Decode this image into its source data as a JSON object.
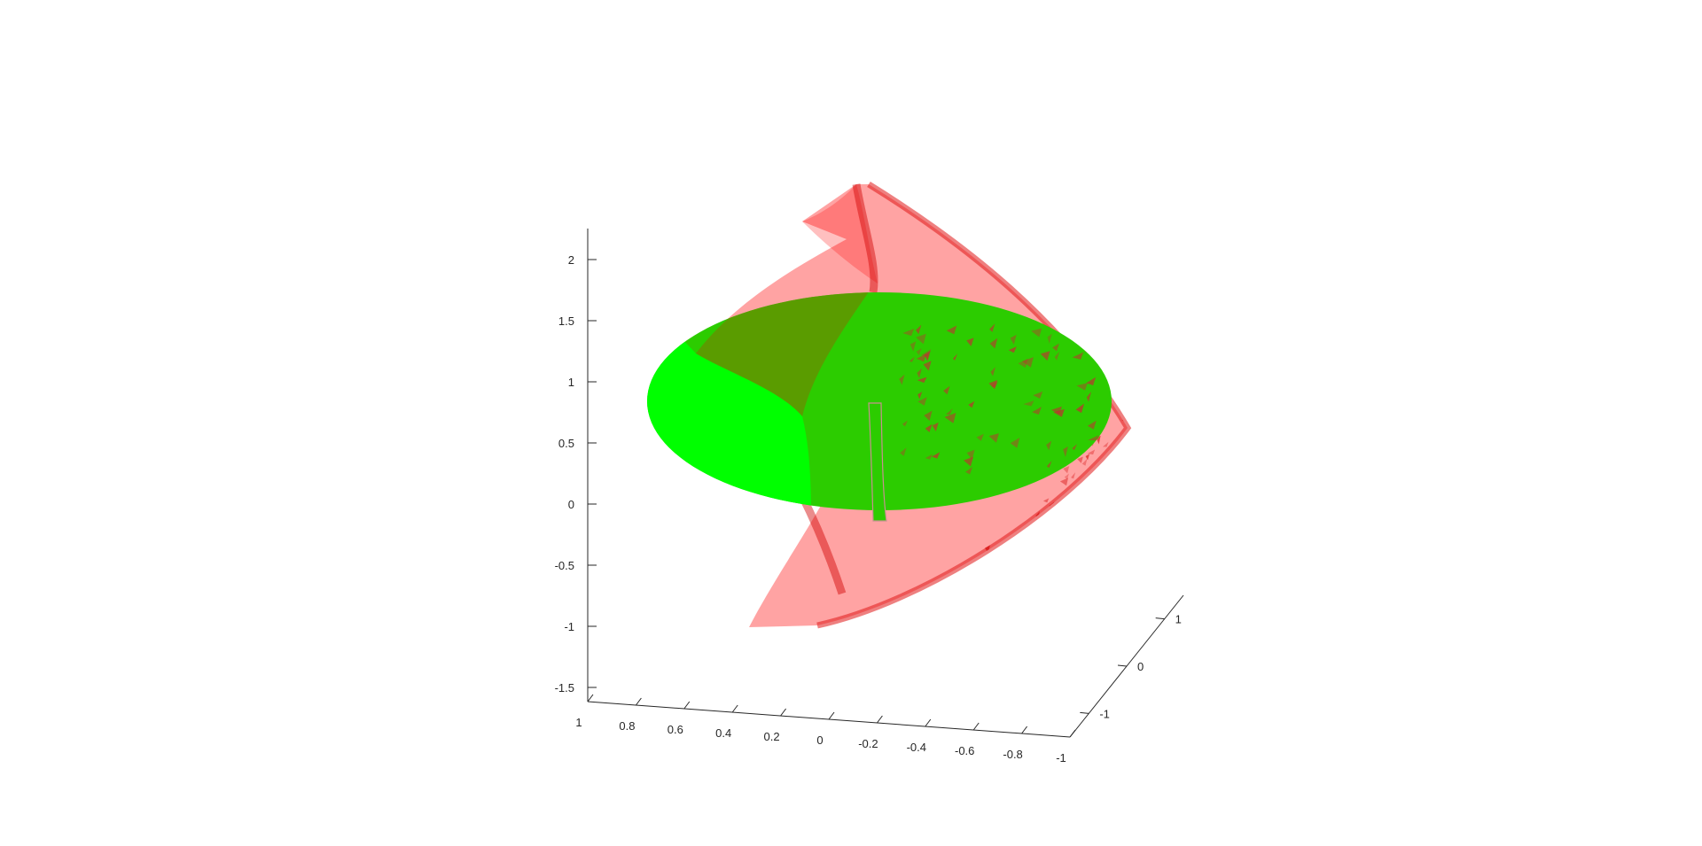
{
  "chart_data": {
    "type": "surface3d",
    "title": "",
    "xlabel": "",
    "ylabel": "",
    "zlabel": "",
    "grid": false,
    "legend": "none",
    "x_axis": {
      "lim": [
        -1,
        1
      ],
      "ticks": [
        1,
        0.8,
        0.6,
        0.4,
        0.2,
        0,
        -0.2,
        -0.4,
        -0.6,
        -0.8,
        -1
      ],
      "tick_labels": [
        "1",
        "0.8",
        "0.6",
        "0.4",
        "0.2",
        "0",
        "-0.2",
        "-0.4",
        "-0.6",
        "-0.8",
        "-1"
      ]
    },
    "y_axis": {
      "lim": [
        -1.5,
        1.5
      ],
      "ticks": [
        -1,
        0,
        1
      ],
      "tick_labels": [
        "-1",
        "0",
        "1"
      ]
    },
    "z_axis": {
      "lim": [
        -1.65,
        2.2
      ],
      "ticks": [
        -1.5,
        -1,
        -0.5,
        0,
        0.5,
        1,
        1.5,
        2
      ],
      "tick_labels": [
        "-1.5",
        "-1",
        "-0.5",
        "0",
        "0.5",
        "1",
        "1.5",
        "2"
      ]
    },
    "surfaces": [
      {
        "name": "",
        "color": "#ff0000",
        "alpha": 0.35,
        "shape": "curved-shell"
      },
      {
        "name": "",
        "color": "#22cc00",
        "alpha": 1.0,
        "shape": "elliptical-disk"
      }
    ],
    "colors": {
      "shell": "#ff8a8a",
      "shell_dark": "#e01818",
      "disk": "#2ccc00",
      "disk_bright": "#00ff00",
      "axis": "#262626"
    }
  }
}
